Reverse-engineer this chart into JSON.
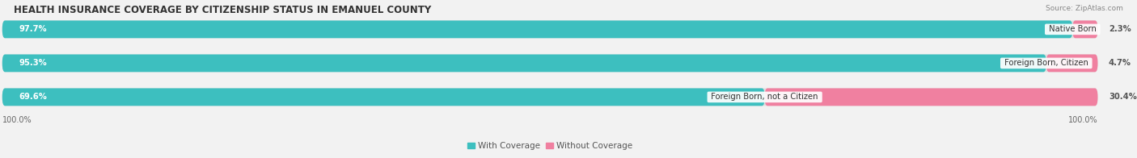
{
  "title": "HEALTH INSURANCE COVERAGE BY CITIZENSHIP STATUS IN EMANUEL COUNTY",
  "source": "Source: ZipAtlas.com",
  "categories": [
    "Native Born",
    "Foreign Born, Citizen",
    "Foreign Born, not a Citizen"
  ],
  "with_coverage": [
    97.7,
    95.3,
    69.6
  ],
  "without_coverage": [
    2.3,
    4.7,
    30.4
  ],
  "color_with": "#3DBFBF",
  "color_without": "#F080A0",
  "color_with_light": "#C8E8E8",
  "color_without_light": "#FAD8E2",
  "bg_color": "#f2f2f2",
  "track_color": "#E0E0E0",
  "title_fontsize": 8.5,
  "label_fontsize": 7.2,
  "pct_fontsize": 7.2,
  "tick_fontsize": 7,
  "legend_fontsize": 7.5,
  "source_fontsize": 6.5,
  "x_left_label": "100.0%",
  "x_right_label": "100.0%"
}
